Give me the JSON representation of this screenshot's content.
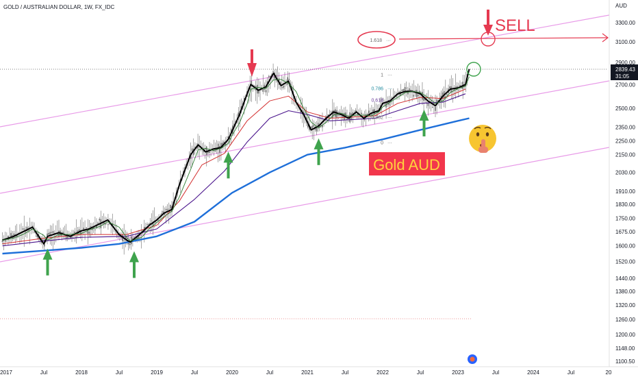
{
  "symbol_title": "GOLD / AUSTRALIAN DOLLAR, 1W, FX_IDC",
  "currency": "AUD",
  "price_label": {
    "price": "2839.43",
    "countdown": "31:05",
    "value": 2839.43
  },
  "annotations": {
    "sell_label": "SELL",
    "gold_aud_label": "Gold AUD",
    "emoji": "🤫"
  },
  "colors": {
    "candle": "#6b6b6b",
    "wma_fast": "#000000",
    "ema_mid": "#2e7d32",
    "ema_red": "#d32f2f",
    "ema_purple": "#4a148c",
    "ma_200": "#1e6fd9",
    "channel": "#e89ae8",
    "sell_arrow": "#e53950",
    "buy_arrow": "#3fa34d",
    "gold_box": "#f2364c",
    "gold_text": "#ffd33d",
    "fib_grey": "#666666",
    "fib_0786": "#1f8a9e",
    "fib_0618": "#6a3d9a",
    "price_tag": "#131722"
  },
  "chart_data": {
    "type": "line",
    "y_axis": {
      "scale": "log",
      "ticks": [
        "3300.00",
        "3100.00",
        "2900.00",
        "2700.00",
        "2500.00",
        "2350.00",
        "2250.00",
        "2150.00",
        "2030.00",
        "1910.00",
        "1830.00",
        "1750.00",
        "1675.00",
        "1600.00",
        "1520.00",
        "1440.00",
        "1380.00",
        "1320.00",
        "1260.00",
        "1200.00",
        "1148.00",
        "1100.50"
      ],
      "tick_values": [
        3300,
        3100,
        2900,
        2700,
        2500,
        2350,
        2250,
        2150,
        2030,
        1910,
        1830,
        1750,
        1675,
        1600,
        1520,
        1440,
        1380,
        1320,
        1260,
        1200,
        1148,
        1100.5
      ],
      "range": [
        1090,
        3500
      ]
    },
    "x_axis": {
      "labels": [
        "2017",
        "Jul",
        "2018",
        "Jul",
        "2019",
        "Jul",
        "2020",
        "Jul",
        "2021",
        "Jul",
        "2022",
        "Jul",
        "2023",
        "Jul",
        "2024",
        "Jul",
        "20"
      ],
      "label_dates": [
        2017.0,
        2017.5,
        2018.0,
        2018.5,
        2019.0,
        2019.5,
        2020.0,
        2020.5,
        2021.0,
        2021.5,
        2022.0,
        2022.5,
        2023.0,
        2023.5,
        2024.0,
        2024.5,
        2025.0
      ],
      "range": [
        2017.0,
        2025.0
      ]
    },
    "series": [
      {
        "key": "price",
        "x": [
          2016.95,
          2017.1,
          2017.25,
          2017.35,
          2017.5,
          2017.55,
          2017.7,
          2017.85,
          2018.0,
          2018.1,
          2018.25,
          2018.35,
          2018.5,
          2018.6,
          2018.65,
          2018.8,
          2018.9,
          2019.0,
          2019.1,
          2019.2,
          2019.3,
          2019.45,
          2019.55,
          2019.65,
          2019.75,
          2019.85,
          2019.95,
          2020.0,
          2020.1,
          2020.2,
          2020.25,
          2020.35,
          2020.45,
          2020.55,
          2020.65,
          2020.75,
          2020.85,
          2020.95,
          2021.05,
          2021.15,
          2021.25,
          2021.35,
          2021.45,
          2021.55,
          2021.65,
          2021.75,
          2021.85,
          2021.95,
          2022.0,
          2022.1,
          2022.2,
          2022.3,
          2022.4,
          2022.5,
          2022.6,
          2022.7,
          2022.8,
          2022.9,
          2023.0,
          2023.1,
          2023.15
        ],
        "y": [
          1630,
          1650,
          1680,
          1700,
          1610,
          1650,
          1670,
          1650,
          1680,
          1690,
          1720,
          1740,
          1660,
          1630,
          1620,
          1670,
          1710,
          1740,
          1780,
          1800,
          1950,
          2150,
          2220,
          2170,
          2190,
          2200,
          2260,
          2320,
          2450,
          2620,
          2700,
          2650,
          2680,
          2800,
          2690,
          2730,
          2550,
          2450,
          2330,
          2360,
          2420,
          2470,
          2450,
          2420,
          2470,
          2420,
          2460,
          2480,
          2540,
          2560,
          2620,
          2640,
          2640,
          2620,
          2560,
          2520,
          2600,
          2660,
          2670,
          2700,
          2839
        ]
      },
      {
        "key": "ema_red",
        "x": [
          2016.95,
          2017.5,
          2018.0,
          2018.6,
          2019.0,
          2019.3,
          2019.6,
          2019.9,
          2020.2,
          2020.5,
          2020.75,
          2021.0,
          2021.3,
          2021.6,
          2021.9,
          2022.2,
          2022.5,
          2022.8,
          2023.1
        ],
        "y": [
          1610,
          1640,
          1660,
          1660,
          1710,
          1850,
          2080,
          2160,
          2400,
          2560,
          2600,
          2470,
          2420,
          2430,
          2440,
          2540,
          2590,
          2580,
          2660
        ]
      },
      {
        "key": "ema_purple",
        "x": [
          2016.95,
          2017.5,
          2018.0,
          2018.6,
          2019.0,
          2019.5,
          2019.9,
          2020.2,
          2020.5,
          2020.75,
          2021.0,
          2021.3,
          2021.6,
          2021.9,
          2022.2,
          2022.5,
          2022.8,
          2023.1
        ],
        "y": [
          1600,
          1625,
          1645,
          1650,
          1690,
          1860,
          2040,
          2240,
          2420,
          2480,
          2450,
          2400,
          2410,
          2420,
          2480,
          2540,
          2550,
          2620
        ]
      },
      {
        "key": "ma_200",
        "x": [
          2016.95,
          2017.5,
          2018.0,
          2018.5,
          2019.0,
          2019.5,
          2020.0,
          2020.5,
          2021.0,
          2021.5,
          2022.0,
          2022.5,
          2023.0,
          2023.15
        ],
        "y": [
          1560,
          1575,
          1590,
          1610,
          1650,
          1730,
          1900,
          2030,
          2150,
          2200,
          2260,
          2330,
          2400,
          2420
        ]
      }
    ],
    "fib_levels": [
      {
        "label": "1.618",
        "value": 3085
      },
      {
        "label": "1",
        "value": 2790
      },
      {
        "label": "0.786",
        "value": 2670
      },
      {
        "label": "0.618",
        "value": 2570
      },
      {
        "label": "0.382",
        "value": 2430
      },
      {
        "label": "0",
        "value": 2240
      }
    ],
    "buy_arrows": [
      2017.55,
      2018.7,
      2019.95,
      2021.15,
      2022.55
    ],
    "sell_arrow": 2020.25,
    "sell_target_value": 3100
  }
}
